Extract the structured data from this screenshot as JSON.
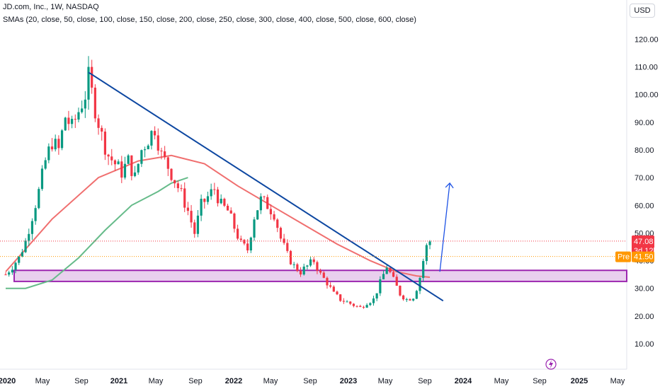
{
  "header": {
    "title": "JD.com, Inc., 1W, NASDAQ",
    "indicator": "SMAs (20, close, 50, close, 100, close, 150, close, 200, close, 250, close, 300, close, 400, close, 500, close, 600, close)",
    "currency": "USD"
  },
  "chart_data": {
    "type": "candlestick",
    "symbol": "JD.com, Inc.",
    "interval": "1W",
    "exchange": "NASDAQ",
    "y_axis": {
      "ticks": [
        "10.00",
        "20.00",
        "30.00",
        "40.00",
        "50.00",
        "60.00",
        "70.00",
        "80.00",
        "90.00",
        "100.00",
        "110.00",
        "120.00"
      ],
      "range": [
        0,
        125
      ]
    },
    "x_axis": {
      "ticks": [
        {
          "label": "2020",
          "bold": true
        },
        {
          "label": "May",
          "bold": false
        },
        {
          "label": "Sep",
          "bold": false
        },
        {
          "label": "2021",
          "bold": true
        },
        {
          "label": "May",
          "bold": false
        },
        {
          "label": "Sep",
          "bold": false
        },
        {
          "label": "2022",
          "bold": true
        },
        {
          "label": "May",
          "bold": false
        },
        {
          "label": "Sep",
          "bold": false
        },
        {
          "label": "2023",
          "bold": true
        },
        {
          "label": "May",
          "bold": false
        },
        {
          "label": "Sep",
          "bold": false
        },
        {
          "label": "2024",
          "bold": true
        },
        {
          "label": "May",
          "bold": false
        },
        {
          "label": "Sep",
          "bold": false
        },
        {
          "label": "2025",
          "bold": true
        },
        {
          "label": "May",
          "bold": false
        }
      ]
    },
    "price_path": [
      [
        0,
        35
      ],
      [
        2,
        38
      ],
      [
        4,
        41
      ],
      [
        6,
        47
      ],
      [
        8,
        56
      ],
      [
        10,
        65
      ],
      [
        12,
        76
      ],
      [
        14,
        83
      ],
      [
        16,
        80
      ],
      [
        18,
        92
      ],
      [
        20,
        88
      ],
      [
        22,
        94
      ],
      [
        24,
        100
      ],
      [
        25,
        106
      ],
      [
        27,
        95
      ],
      [
        29,
        85
      ],
      [
        31,
        78
      ],
      [
        33,
        75
      ],
      [
        35,
        72
      ],
      [
        37,
        76
      ],
      [
        39,
        70
      ],
      [
        41,
        80
      ],
      [
        43,
        84
      ],
      [
        45,
        88
      ],
      [
        47,
        78
      ],
      [
        49,
        74
      ],
      [
        51,
        69
      ],
      [
        53,
        64
      ],
      [
        55,
        58
      ],
      [
        57,
        50
      ],
      [
        59,
        60
      ],
      [
        61,
        63
      ],
      [
        63,
        66
      ],
      [
        65,
        60
      ],
      [
        67,
        58
      ],
      [
        69,
        52
      ],
      [
        71,
        46
      ],
      [
        73,
        44
      ],
      [
        75,
        56
      ],
      [
        77,
        62
      ],
      [
        79,
        60
      ],
      [
        81,
        57
      ],
      [
        83,
        48
      ],
      [
        85,
        42
      ],
      [
        87,
        38
      ],
      [
        89,
        36
      ],
      [
        91,
        38
      ],
      [
        93,
        40
      ],
      [
        95,
        35
      ],
      [
        97,
        32
      ],
      [
        99,
        28
      ],
      [
        101,
        26
      ],
      [
        103,
        25
      ],
      [
        105,
        24
      ],
      [
        107,
        23
      ],
      [
        109,
        25
      ],
      [
        111,
        26
      ],
      [
        113,
        32
      ],
      [
        115,
        38
      ],
      [
        117,
        33
      ],
      [
        119,
        28
      ],
      [
        121,
        26
      ],
      [
        123,
        27
      ],
      [
        124,
        30
      ],
      [
        125,
        34
      ],
      [
        126,
        40
      ],
      [
        127,
        45
      ],
      [
        128,
        47.08
      ]
    ],
    "sma_red": [
      [
        0,
        36
      ],
      [
        14,
        55
      ],
      [
        28,
        70
      ],
      [
        40,
        76
      ],
      [
        50,
        78
      ],
      [
        60,
        75
      ],
      [
        70,
        67
      ],
      [
        80,
        60
      ],
      [
        90,
        53
      ],
      [
        100,
        46
      ],
      [
        110,
        40
      ],
      [
        118,
        36
      ],
      [
        124,
        34.5
      ],
      [
        128,
        34
      ]
    ],
    "sma_green": [
      [
        0,
        30
      ],
      [
        6,
        30
      ],
      [
        14,
        33
      ],
      [
        22,
        41
      ],
      [
        30,
        51
      ],
      [
        38,
        60
      ],
      [
        46,
        65
      ],
      [
        50,
        68
      ],
      [
        55,
        70
      ]
    ],
    "last_price": {
      "value": "47.08",
      "countdown": "3d 12h",
      "color": "#f23645"
    },
    "premarket": {
      "label": "Pre",
      "value": "41.50",
      "color": "#ff9800"
    },
    "support_zone": {
      "low": 32.5,
      "high": 36.5,
      "color": "#9c27b0"
    },
    "trendline": {
      "from": [
        25,
        108
      ],
      "to": [
        132,
        25.5
      ],
      "color": "#0d47a1"
    },
    "arrow": {
      "from": [
        131,
        36
      ],
      "to": [
        134,
        68
      ]
    },
    "annotation_icon": "lightning-bolt-icon",
    "colors": {
      "up": "#089981",
      "down": "#f23645",
      "sma_red": "#f06f6f",
      "sma_green": "#66bb8a"
    }
  }
}
